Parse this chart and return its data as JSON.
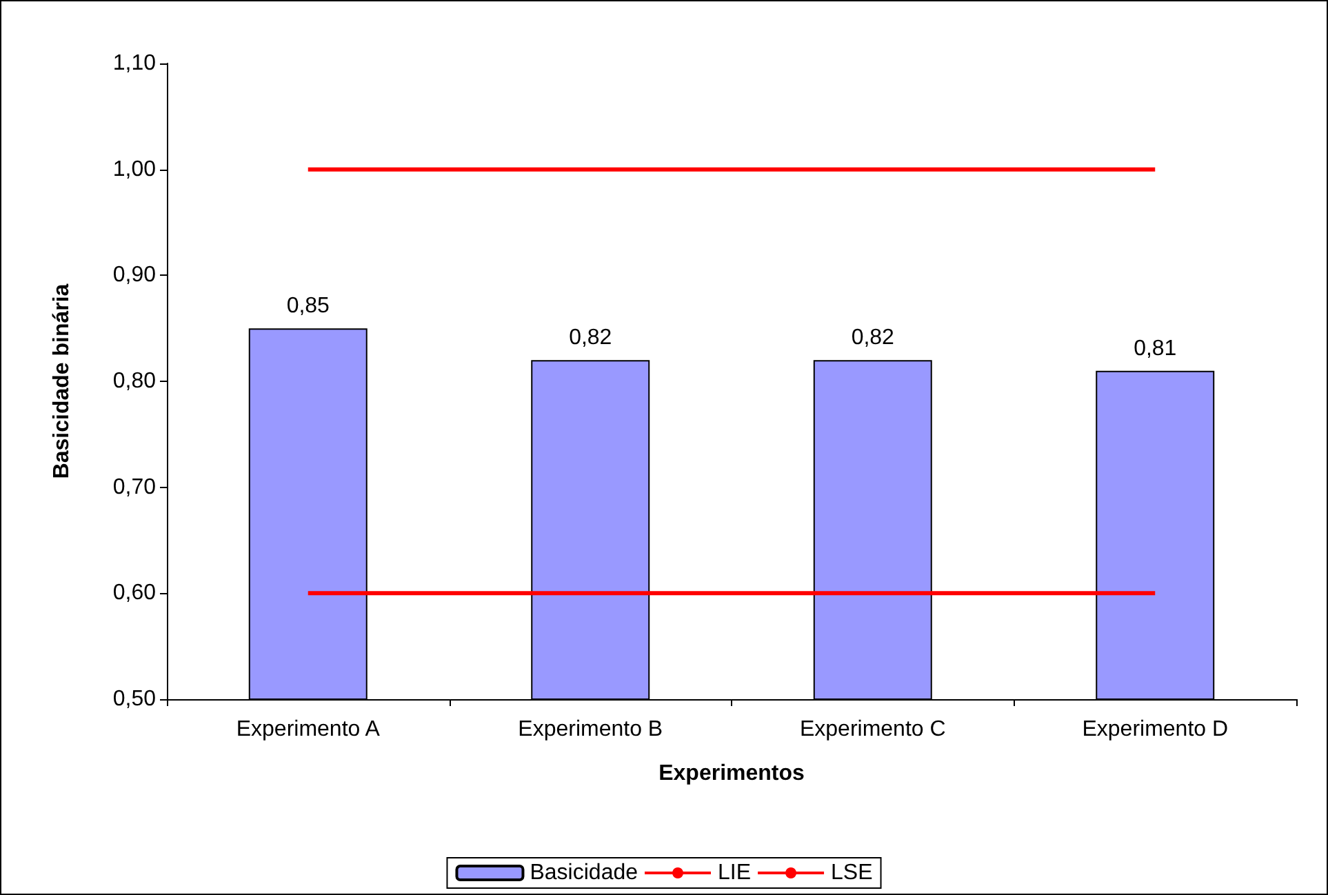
{
  "chart_data": {
    "type": "bar",
    "xlabel": "Experimentos",
    "ylabel": "Basicidade binária",
    "categories": [
      "Experimento A",
      "Experimento B",
      "Experimento C",
      "Experimento D"
    ],
    "series": [
      {
        "name": "Basicidade",
        "color": "#9999ff",
        "values": [
          0.85,
          0.82,
          0.82,
          0.81
        ],
        "value_labels": [
          "0,85",
          "0,82",
          "0,82",
          "0,81"
        ]
      },
      {
        "name": "LIE",
        "type": "line",
        "color": "#ff0000",
        "values": [
          0.6,
          0.6,
          0.6,
          0.6
        ]
      },
      {
        "name": "LSE",
        "type": "line",
        "color": "#ff0000",
        "values": [
          1.0,
          1.0,
          1.0,
          1.0
        ]
      }
    ],
    "ylim": [
      0.5,
      1.1
    ],
    "yticks": [
      {
        "value": 0.5,
        "label": "0,50"
      },
      {
        "value": 0.6,
        "label": "0,60"
      },
      {
        "value": 0.7,
        "label": "0,70"
      },
      {
        "value": 0.8,
        "label": "0,80"
      },
      {
        "value": 0.9,
        "label": "0,90"
      },
      {
        "value": 1.0,
        "label": "1,00"
      },
      {
        "value": 1.1,
        "label": "1,10"
      }
    ],
    "grid": false,
    "legend": "bottom",
    "marker": "none"
  }
}
